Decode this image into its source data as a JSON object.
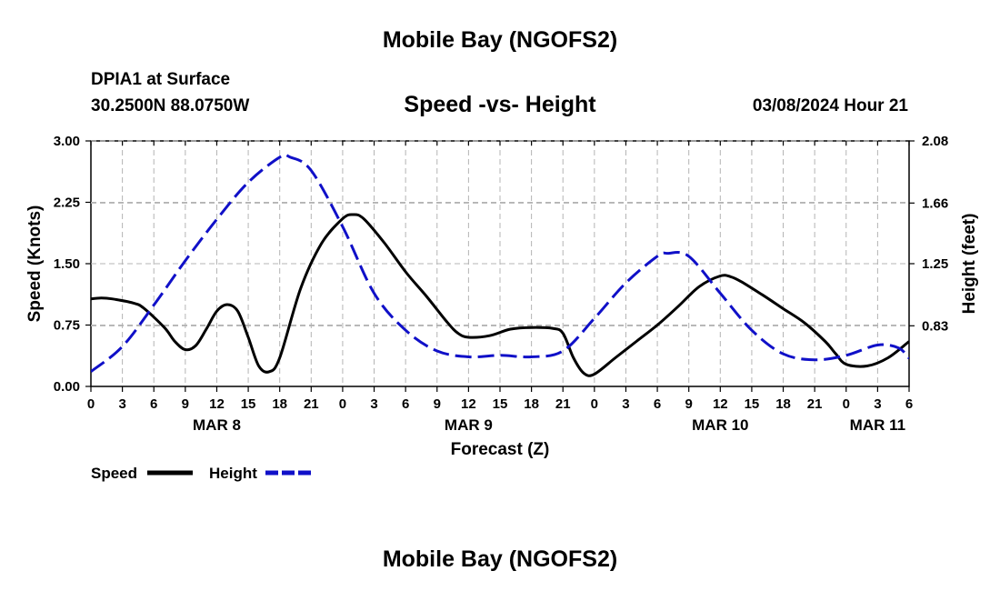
{
  "header": {
    "title": "Mobile Bay (NGOFS2)",
    "station": "DPIA1 at Surface",
    "coords": "30.2500N  88.0750W",
    "chart_title": "Speed -vs- Height",
    "timestamp": "03/08/2024 Hour 21"
  },
  "footer": {
    "title": "Mobile Bay (NGOFS2)"
  },
  "colors": {
    "speed": "#000000",
    "height": "#1010c8",
    "grid": "#b4b4b4"
  },
  "chart_data": {
    "type": "line",
    "title": "Speed -vs- Height",
    "xlabel": "Forecast (Z)",
    "ylabel": "Speed (Knots)",
    "y2label": "Height (feet)",
    "xlim": [
      0,
      78
    ],
    "ylim": [
      0,
      3.0
    ],
    "y2lim": [
      0.42,
      2.08
    ],
    "x_ticks": [
      0,
      3,
      6,
      9,
      12,
      15,
      18,
      21,
      24,
      27,
      30,
      33,
      36,
      39,
      42,
      45,
      48,
      51,
      54,
      57,
      60,
      63,
      66,
      69,
      72,
      75,
      78
    ],
    "x_tick_labels": [
      "0",
      "3",
      "6",
      "9",
      "12",
      "15",
      "18",
      "21",
      "0",
      "3",
      "6",
      "9",
      "12",
      "15",
      "18",
      "21",
      "0",
      "3",
      "6",
      "9",
      "12",
      "15",
      "18",
      "21",
      "0",
      "3",
      "6"
    ],
    "date_labels": [
      {
        "label": "MAR 8",
        "x": 12
      },
      {
        "label": "MAR 9",
        "x": 36
      },
      {
        "label": "MAR 10",
        "x": 60
      },
      {
        "label": "MAR 11",
        "x": 75
      }
    ],
    "y_ticks": [
      0,
      0.75,
      1.5,
      2.25,
      3.0
    ],
    "y_tick_labels": [
      "0.00",
      "0.75",
      "1.50",
      "2.25",
      "3.00"
    ],
    "y2_ticks": [
      0.83,
      1.25,
      1.66,
      2.08
    ],
    "y2_tick_labels": [
      "0.83",
      "1.25",
      "1.66",
      "2.08"
    ],
    "series": [
      {
        "name": "Speed",
        "axis": "left",
        "style": "solid",
        "x": [
          0,
          1,
          2,
          4,
          5,
          7,
          8,
          9,
          10,
          11,
          12,
          13,
          14,
          15,
          16,
          17,
          18,
          20,
          22,
          24,
          25,
          26,
          28,
          30,
          32,
          34,
          35,
          36,
          38,
          40,
          42,
          44,
          45,
          46,
          47,
          48,
          50,
          52,
          54,
          56,
          58,
          60,
          61,
          62,
          64,
          66,
          68,
          70,
          71,
          72,
          74,
          76,
          78
        ],
        "values": [
          1.07,
          1.08,
          1.07,
          1.02,
          0.96,
          0.72,
          0.55,
          0.45,
          0.5,
          0.7,
          0.92,
          1.0,
          0.92,
          0.6,
          0.25,
          0.18,
          0.35,
          1.2,
          1.75,
          2.05,
          2.1,
          2.05,
          1.75,
          1.4,
          1.1,
          0.78,
          0.65,
          0.6,
          0.62,
          0.7,
          0.72,
          0.71,
          0.65,
          0.35,
          0.16,
          0.15,
          0.35,
          0.55,
          0.75,
          0.98,
          1.22,
          1.35,
          1.34,
          1.28,
          1.12,
          0.95,
          0.78,
          0.55,
          0.4,
          0.27,
          0.25,
          0.35,
          0.55
        ],
        "note": "values extend beyond x=78 to the right edge; last visible point clipped at axis"
      },
      {
        "name": "Height",
        "axis": "right",
        "style": "dashed",
        "x": [
          0,
          3,
          6,
          9,
          12,
          15,
          18,
          19,
          21,
          24,
          27,
          30,
          33,
          36,
          39,
          42,
          45,
          48,
          51,
          54,
          55,
          57,
          60,
          63,
          66,
          69,
          72,
          75,
          77,
          78
        ],
        "values": [
          0.52,
          0.69,
          0.97,
          1.27,
          1.55,
          1.8,
          1.97,
          1.97,
          1.88,
          1.5,
          1.05,
          0.8,
          0.66,
          0.62,
          0.63,
          0.62,
          0.66,
          0.88,
          1.12,
          1.3,
          1.32,
          1.3,
          1.05,
          0.8,
          0.64,
          0.6,
          0.63,
          0.7,
          0.68,
          0.61
        ]
      }
    ],
    "legend": {
      "position": "bottom-left",
      "entries": [
        "Speed",
        "Height"
      ]
    }
  }
}
